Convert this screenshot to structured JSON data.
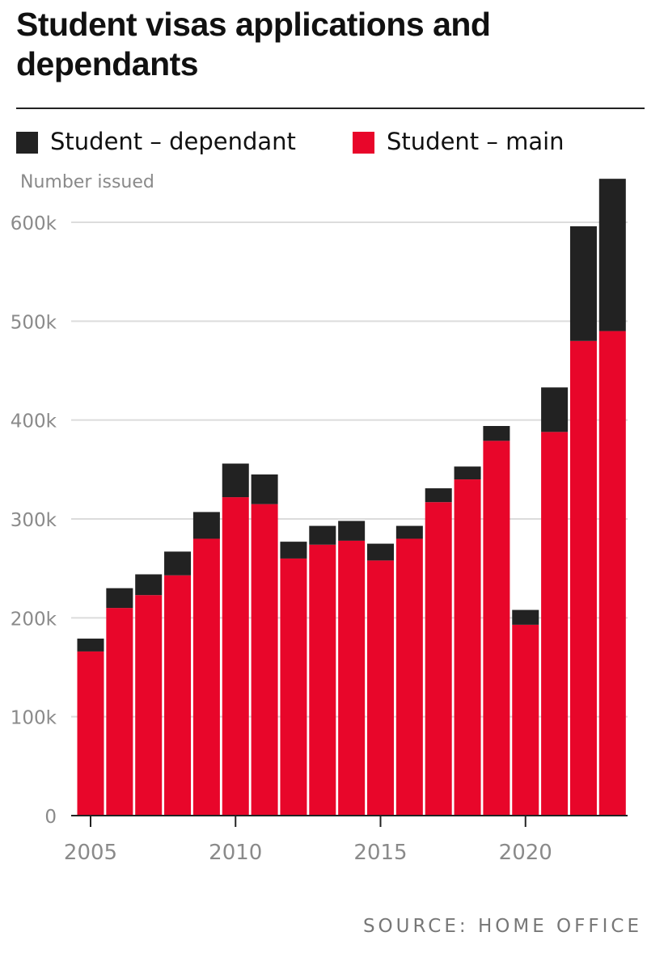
{
  "title": "Student visas applications and dependants",
  "legend": [
    {
      "label": "Student – dependant",
      "color": "#222222"
    },
    {
      "label": "Student – main",
      "color": "#e8062a"
    }
  ],
  "source": "SOURCE: HOME OFFICE",
  "chart_data": {
    "type": "bar",
    "stacked": true,
    "title": "Student visas applications and dependants",
    "ylabel": "Number issued",
    "xlabel": "",
    "ylim": [
      0,
      640000
    ],
    "yticks": [
      0,
      100000,
      200000,
      300000,
      400000,
      500000,
      600000
    ],
    "ytick_labels": [
      "0",
      "100k",
      "200k",
      "300k",
      "400k",
      "500k",
      "600k"
    ],
    "xticks": [
      2005,
      2010,
      2015,
      2020
    ],
    "categories": [
      2005,
      2006,
      2007,
      2008,
      2009,
      2010,
      2011,
      2012,
      2013,
      2014,
      2015,
      2016,
      2017,
      2018,
      2019,
      2020,
      2021,
      2022,
      2023
    ],
    "series": [
      {
        "name": "Student – main",
        "color": "#e8062a",
        "values": [
          166000,
          210000,
          223000,
          243000,
          280000,
          322000,
          315000,
          260000,
          274000,
          278000,
          258000,
          280000,
          317000,
          340000,
          379000,
          193000,
          388000,
          480000,
          490000
        ]
      },
      {
        "name": "Student – dependant",
        "color": "#222222",
        "values": [
          13000,
          20000,
          21000,
          24000,
          27000,
          34000,
          30000,
          17000,
          19000,
          20000,
          17000,
          13000,
          14000,
          13000,
          15000,
          15000,
          45000,
          116000,
          154000
        ]
      }
    ],
    "grid": true,
    "legend_position": "top"
  }
}
